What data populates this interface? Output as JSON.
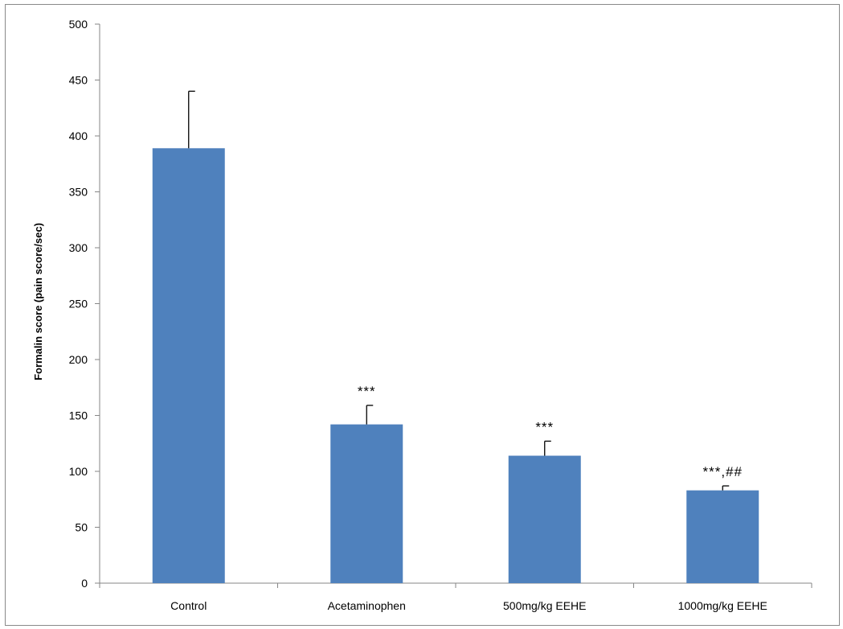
{
  "chart_data": {
    "type": "bar",
    "title": "",
    "xlabel": "",
    "ylabel": "Formalin score (pain score/sec)",
    "categories": [
      "Control",
      "Acetaminophen",
      "500mg/kg EEHE",
      "1000mg/kg EEHE"
    ],
    "values": [
      389,
      142,
      114,
      83
    ],
    "error": [
      51,
      17,
      13,
      4
    ],
    "annotations": [
      "",
      "***",
      "***",
      "***,##"
    ],
    "ylim": [
      0,
      500
    ],
    "yticks": [
      0,
      50,
      100,
      150,
      200,
      250,
      300,
      350,
      400,
      450,
      500
    ],
    "bar_color": "#4f81bd",
    "grid": false,
    "legend": "none"
  }
}
